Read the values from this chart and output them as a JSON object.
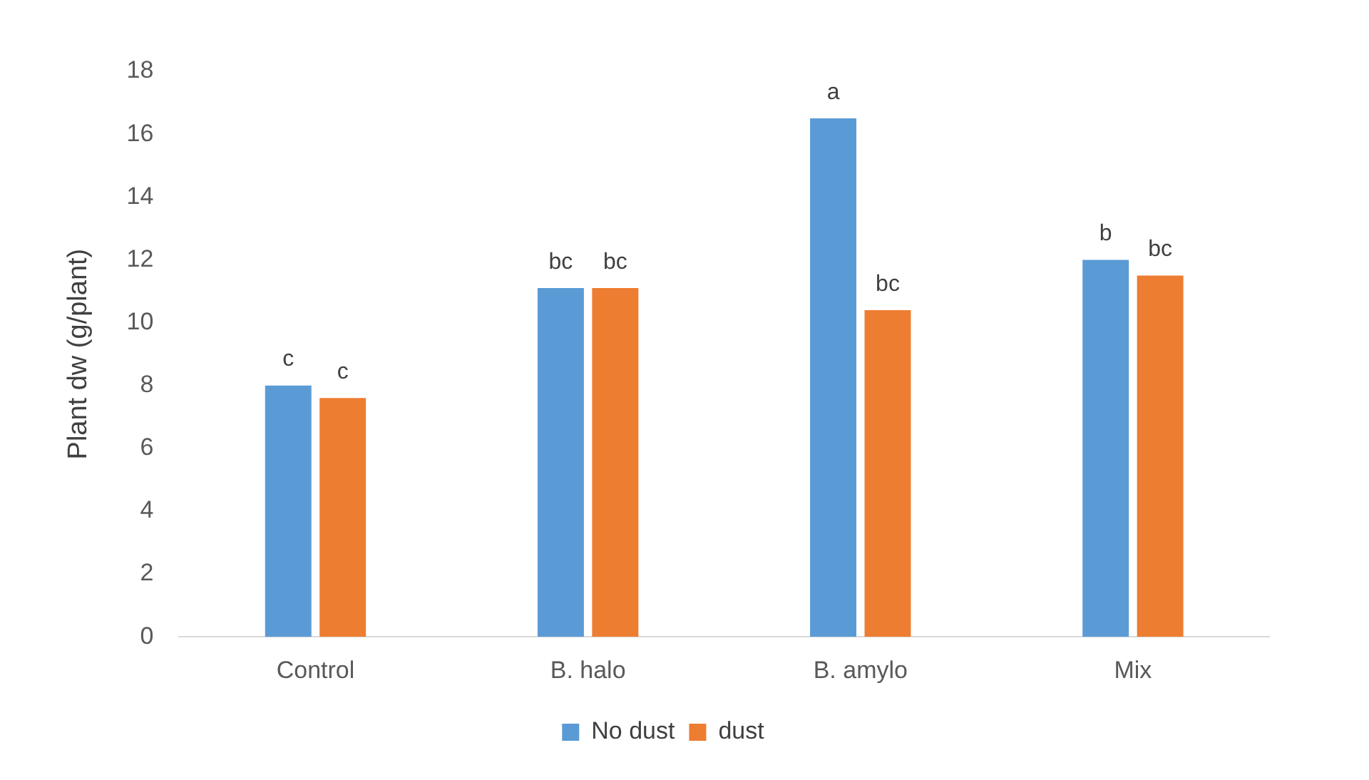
{
  "chart_data": {
    "type": "bar",
    "ylabel": "Plant dw (g/plant)",
    "categories": [
      "Control",
      "B. halo",
      "B. amylo",
      "Mix"
    ],
    "series": [
      {
        "name": "No dust",
        "color": "#5b9bd5",
        "values": [
          8.0,
          11.1,
          16.5,
          12.0
        ],
        "value_labels": [
          "c",
          "bc",
          "a",
          "b"
        ]
      },
      {
        "name": "dust",
        "color": "#ed7d31",
        "values": [
          7.6,
          11.1,
          10.4,
          11.5
        ],
        "value_labels": [
          "c",
          "bc",
          "bc",
          "bc"
        ]
      }
    ],
    "ylim": [
      0,
      18
    ],
    "yticks": [
      0,
      2,
      4,
      6,
      8,
      10,
      12,
      14,
      16,
      18
    ],
    "grid": false,
    "legend": "bottom"
  }
}
